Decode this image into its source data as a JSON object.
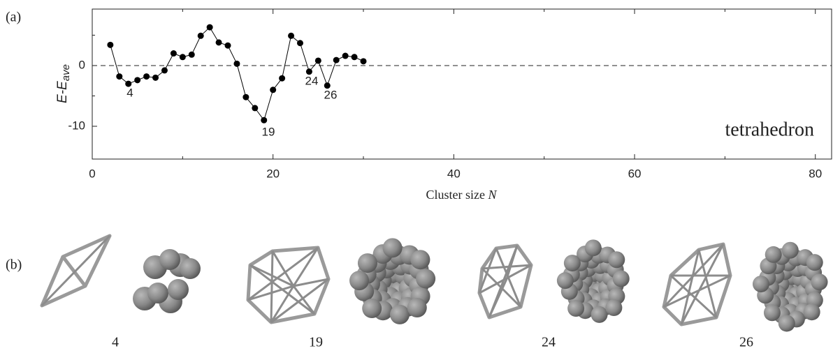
{
  "chart_data": {
    "type": "line",
    "panel_label": "(a)",
    "y_label": "E-E",
    "y_label_sub": "ave",
    "x_label": "Cluster size ",
    "x_label_var": "N",
    "x": [
      2,
      3,
      4,
      5,
      6,
      7,
      8,
      9,
      10,
      11,
      12,
      13,
      14,
      15,
      16,
      17,
      18,
      19,
      20,
      21,
      22,
      23,
      24,
      25,
      26,
      27,
      28,
      29,
      30
    ],
    "series": [
      {
        "name": "tetrahedron",
        "color": "#000000",
        "values": [
          3.4,
          -1.8,
          -3.0,
          -2.4,
          -1.8,
          -2.0,
          -0.8,
          2.0,
          1.4,
          1.8,
          4.9,
          6.3,
          3.8,
          3.3,
          0.3,
          -5.2,
          -7.0,
          -9.0,
          -4.0,
          -2.1,
          4.9,
          3.7,
          -1.0,
          0.8,
          -3.3,
          0.9,
          1.6,
          1.4,
          0.7
        ]
      }
    ],
    "annotations": [
      "4",
      "19",
      "24",
      "26"
    ],
    "xlim": [
      0,
      81.8
    ],
    "xticks": [
      0,
      20,
      40,
      60,
      80
    ],
    "xminor": [
      10,
      30,
      50,
      70
    ],
    "ylim": [
      -15.4,
      9.3
    ],
    "yticks": [
      -10,
      0
    ],
    "yminor": [
      -5,
      5
    ],
    "hline": 0
  },
  "panel_b": {
    "panel_label": "(b)",
    "labels": [
      "4",
      "19",
      "24",
      "26"
    ]
  }
}
